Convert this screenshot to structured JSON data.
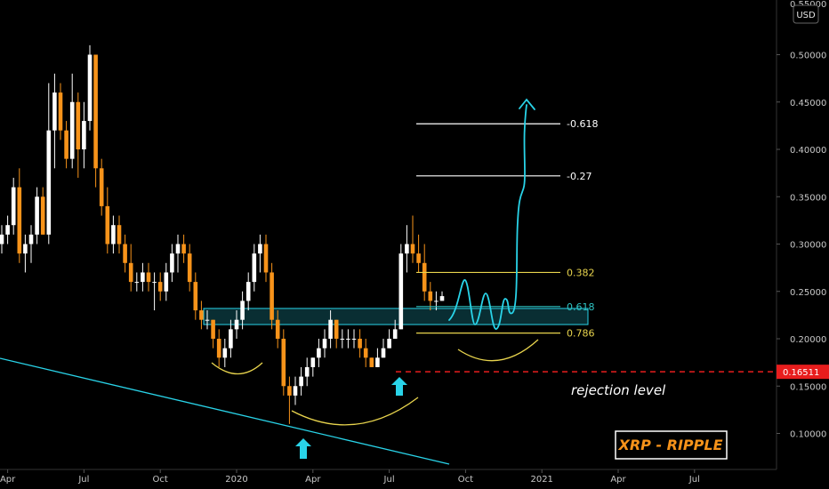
{
  "chart_data": {
    "type": "candlestick",
    "title": "XRP - RIPPLE",
    "currency": "USD",
    "ylim": [
      0.07,
      0.55
    ],
    "y_ticks": [
      "0.10000",
      "0.15000",
      "0.20000",
      "0.25000",
      "0.30000",
      "0.35000",
      "0.40000",
      "0.45000",
      "0.50000"
    ],
    "x_ticks": [
      {
        "label": "Apr",
        "week": 1
      },
      {
        "label": "Jul",
        "week": 14
      },
      {
        "label": "Oct",
        "week": 27
      },
      {
        "label": "2020",
        "week": 40
      },
      {
        "label": "Apr",
        "week": 53
      },
      {
        "label": "Jul",
        "week": 66
      },
      {
        "label": "Oct",
        "week": 79
      },
      {
        "label": "2021",
        "week": 92
      },
      {
        "label": "Apr",
        "week": 105
      },
      {
        "label": "Jul",
        "week": 118
      }
    ],
    "candles": [
      [
        0.3,
        0.32,
        0.29,
        0.31
      ],
      [
        0.31,
        0.33,
        0.3,
        0.32
      ],
      [
        0.32,
        0.37,
        0.31,
        0.36
      ],
      [
        0.36,
        0.38,
        0.28,
        0.29
      ],
      [
        0.29,
        0.31,
        0.27,
        0.3
      ],
      [
        0.3,
        0.32,
        0.28,
        0.31
      ],
      [
        0.31,
        0.36,
        0.3,
        0.35
      ],
      [
        0.35,
        0.36,
        0.31,
        0.31
      ],
      [
        0.31,
        0.47,
        0.3,
        0.42
      ],
      [
        0.42,
        0.48,
        0.38,
        0.46
      ],
      [
        0.46,
        0.47,
        0.41,
        0.42
      ],
      [
        0.42,
        0.43,
        0.38,
        0.39
      ],
      [
        0.39,
        0.48,
        0.38,
        0.45
      ],
      [
        0.45,
        0.46,
        0.37,
        0.4
      ],
      [
        0.4,
        0.45,
        0.38,
        0.43
      ],
      [
        0.43,
        0.51,
        0.42,
        0.5
      ],
      [
        0.5,
        0.5,
        0.36,
        0.38
      ],
      [
        0.38,
        0.39,
        0.33,
        0.34
      ],
      [
        0.34,
        0.36,
        0.29,
        0.3
      ],
      [
        0.3,
        0.33,
        0.29,
        0.32
      ],
      [
        0.32,
        0.33,
        0.29,
        0.3
      ],
      [
        0.3,
        0.31,
        0.27,
        0.28
      ],
      [
        0.28,
        0.3,
        0.25,
        0.26
      ],
      [
        0.26,
        0.27,
        0.25,
        0.26
      ],
      [
        0.26,
        0.28,
        0.25,
        0.27
      ],
      [
        0.27,
        0.28,
        0.25,
        0.26
      ],
      [
        0.26,
        0.27,
        0.23,
        0.26
      ],
      [
        0.26,
        0.27,
        0.24,
        0.25
      ],
      [
        0.25,
        0.28,
        0.24,
        0.27
      ],
      [
        0.27,
        0.3,
        0.26,
        0.29
      ],
      [
        0.29,
        0.31,
        0.27,
        0.3
      ],
      [
        0.3,
        0.31,
        0.28,
        0.29
      ],
      [
        0.29,
        0.3,
        0.25,
        0.26
      ],
      [
        0.26,
        0.27,
        0.22,
        0.23
      ],
      [
        0.23,
        0.24,
        0.21,
        0.22
      ],
      [
        0.22,
        0.23,
        0.21,
        0.22
      ],
      [
        0.22,
        0.22,
        0.19,
        0.2
      ],
      [
        0.2,
        0.21,
        0.17,
        0.18
      ],
      [
        0.18,
        0.2,
        0.17,
        0.19
      ],
      [
        0.19,
        0.22,
        0.18,
        0.21
      ],
      [
        0.21,
        0.23,
        0.2,
        0.22
      ],
      [
        0.22,
        0.25,
        0.21,
        0.24
      ],
      [
        0.24,
        0.27,
        0.23,
        0.26
      ],
      [
        0.26,
        0.3,
        0.25,
        0.29
      ],
      [
        0.29,
        0.31,
        0.27,
        0.3
      ],
      [
        0.3,
        0.31,
        0.26,
        0.27
      ],
      [
        0.27,
        0.28,
        0.21,
        0.22
      ],
      [
        0.22,
        0.23,
        0.19,
        0.2
      ],
      [
        0.2,
        0.21,
        0.14,
        0.15
      ],
      [
        0.15,
        0.16,
        0.11,
        0.14
      ],
      [
        0.14,
        0.16,
        0.13,
        0.15
      ],
      [
        0.15,
        0.17,
        0.14,
        0.16
      ],
      [
        0.16,
        0.18,
        0.15,
        0.17
      ],
      [
        0.17,
        0.18,
        0.16,
        0.18
      ],
      [
        0.18,
        0.2,
        0.17,
        0.19
      ],
      [
        0.19,
        0.21,
        0.18,
        0.2
      ],
      [
        0.2,
        0.23,
        0.19,
        0.22
      ],
      [
        0.22,
        0.22,
        0.19,
        0.2
      ],
      [
        0.2,
        0.21,
        0.19,
        0.2
      ],
      [
        0.2,
        0.21,
        0.19,
        0.2
      ],
      [
        0.2,
        0.21,
        0.19,
        0.2
      ],
      [
        0.2,
        0.21,
        0.18,
        0.19
      ],
      [
        0.19,
        0.2,
        0.17,
        0.18
      ],
      [
        0.18,
        0.18,
        0.17,
        0.17
      ],
      [
        0.17,
        0.19,
        0.17,
        0.18
      ],
      [
        0.18,
        0.2,
        0.18,
        0.19
      ],
      [
        0.19,
        0.21,
        0.19,
        0.2
      ],
      [
        0.2,
        0.22,
        0.2,
        0.21
      ],
      [
        0.21,
        0.3,
        0.21,
        0.29
      ],
      [
        0.29,
        0.32,
        0.27,
        0.3
      ],
      [
        0.3,
        0.33,
        0.28,
        0.29
      ],
      [
        0.29,
        0.31,
        0.27,
        0.28
      ],
      [
        0.28,
        0.3,
        0.24,
        0.25
      ],
      [
        0.25,
        0.26,
        0.23,
        0.24
      ],
      [
        0.24,
        0.25,
        0.23,
        0.24
      ],
      [
        0.24,
        0.25,
        0.24,
        0.245
      ]
    ],
    "fib_levels": [
      {
        "label": "-0.618",
        "value": 0.427,
        "color": "#ffffff"
      },
      {
        "label": "-0.27",
        "value": 0.372,
        "color": "#ffffff"
      },
      {
        "label": "0.382",
        "value": 0.27,
        "color": "#e8d44d"
      },
      {
        "label": "0.618",
        "value": 0.234,
        "color": "#2ec4c4"
      },
      {
        "label": "0.786",
        "value": 0.206,
        "color": "#e8d44d"
      }
    ],
    "rejection_level": {
      "label": "rejection level",
      "value": 0.16511,
      "price_label": "0.16511"
    },
    "support_zone": [
      0.215,
      0.232
    ]
  },
  "colors": {
    "bull": "#ffffff",
    "bear": "#f7931a",
    "cyan": "#29d3e8",
    "yellow": "#e8d44d",
    "red": "#e81d1d",
    "axis_text": "#c8c8c8"
  },
  "top_price_label": "0.55000"
}
